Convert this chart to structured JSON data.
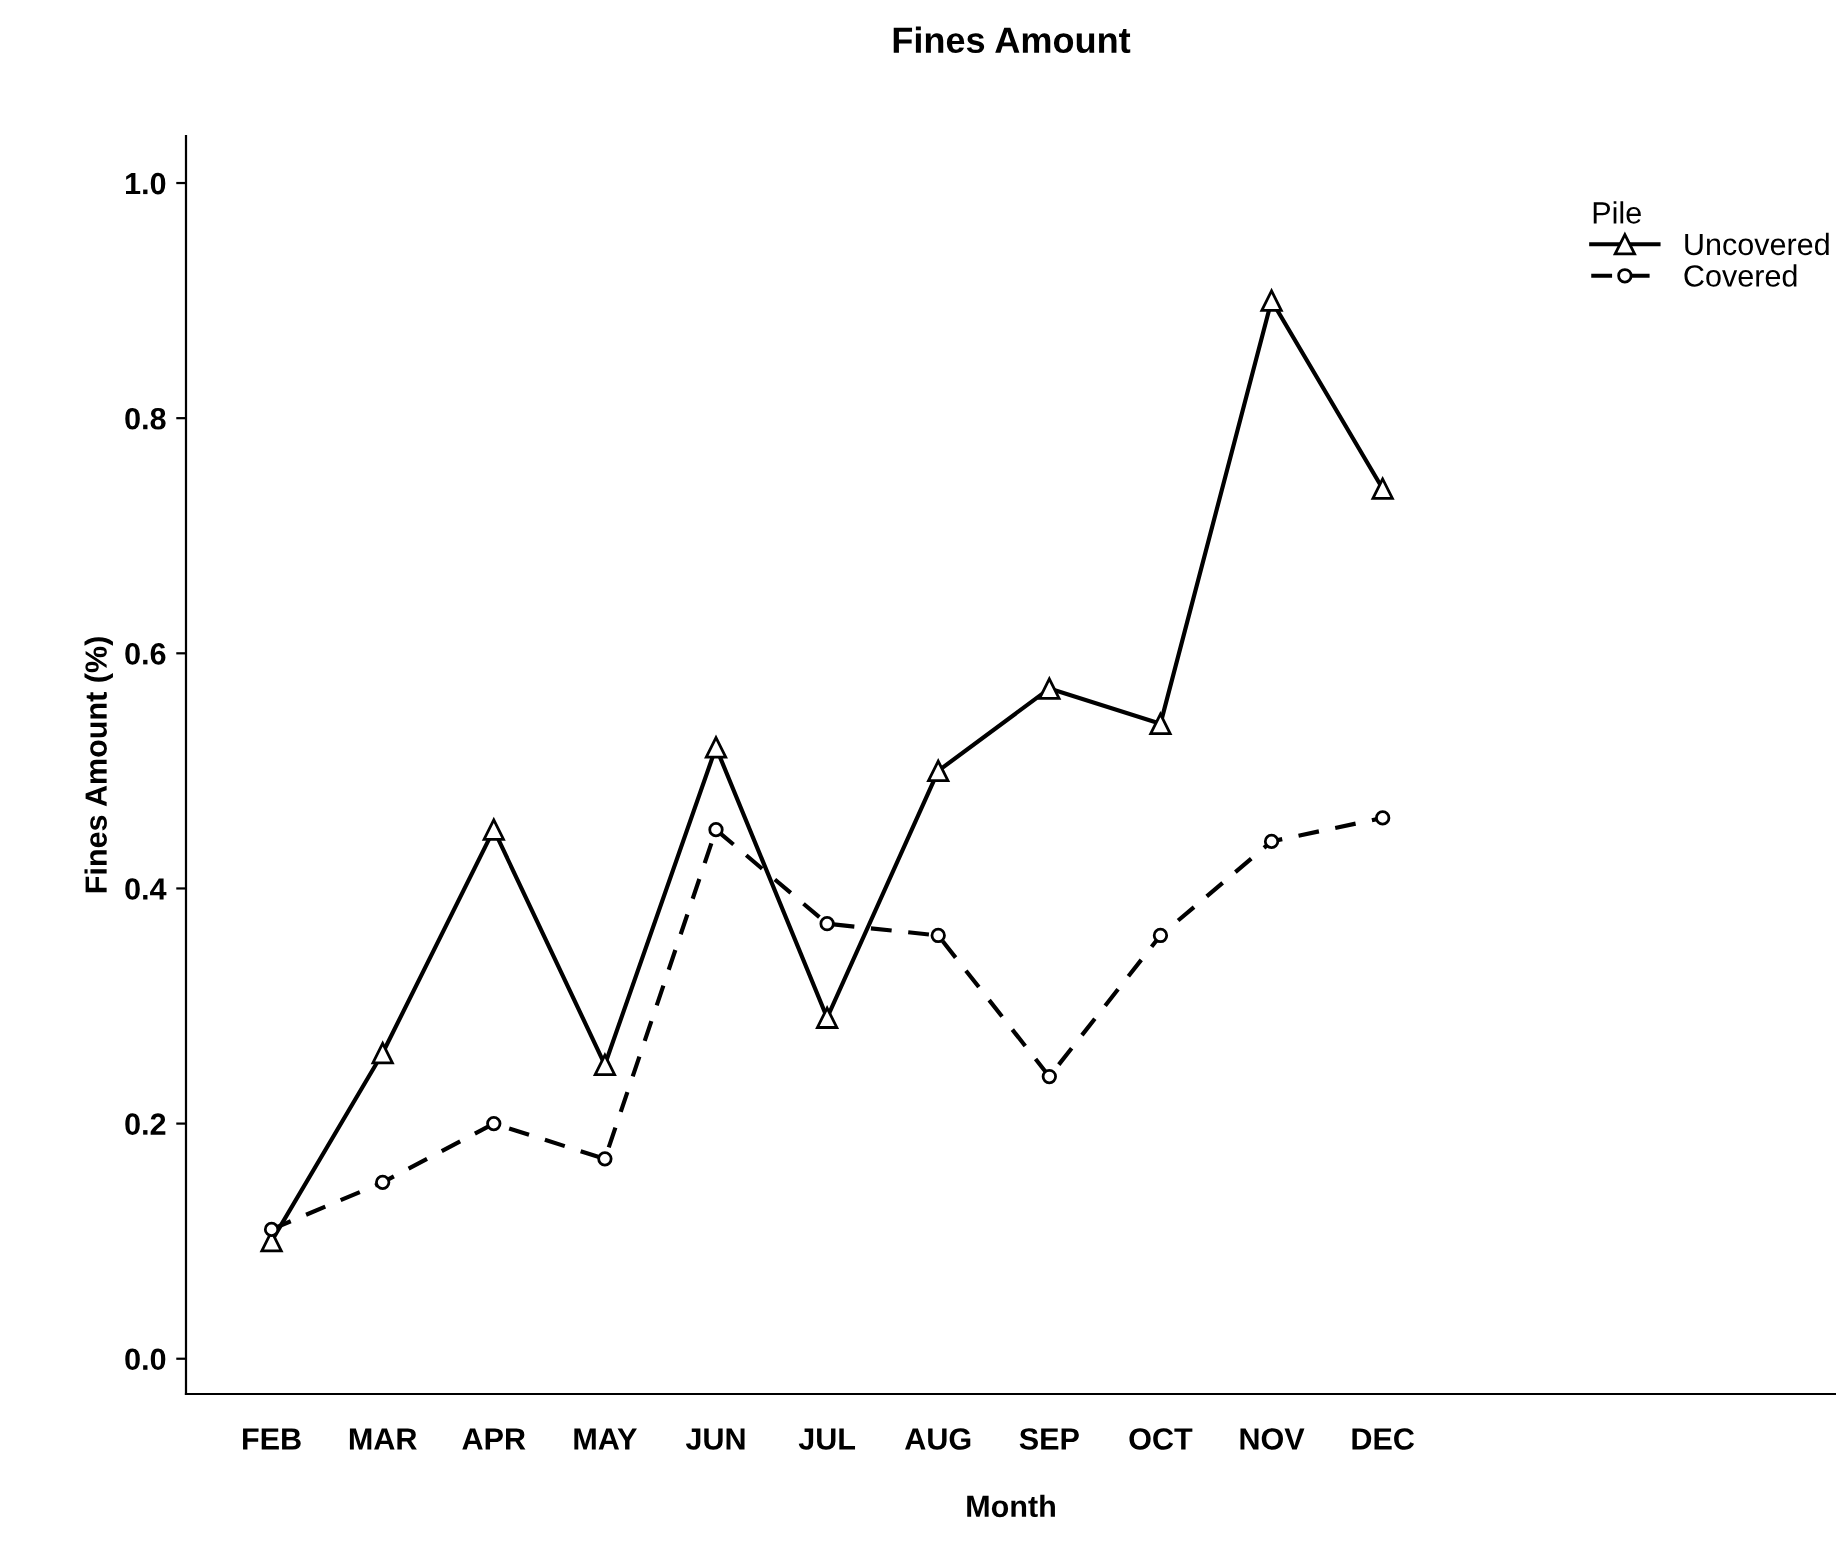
{
  "chart_data": {
    "type": "line",
    "title": "Fines Amount",
    "xlabel": "Month",
    "ylabel": "Fines Amount (%)",
    "legend_title": "Pile",
    "legend": "right",
    "categories": [
      "FEB",
      "MAR",
      "APR",
      "MAY",
      "JUN",
      "JUL",
      "AUG",
      "SEP",
      "OCT",
      "NOV",
      "DEC"
    ],
    "series": [
      {
        "name": "Uncovered",
        "color": "#000000",
        "marker": "triangle",
        "line_style": "solid",
        "values": [
          0.1,
          0.26,
          0.45,
          0.25,
          0.52,
          0.29,
          0.5,
          0.57,
          0.54,
          0.9,
          0.74
        ]
      },
      {
        "name": "Covered",
        "color": "#000000",
        "marker": "circle",
        "line_style": "dashed",
        "values": [
          0.11,
          0.15,
          0.2,
          0.17,
          0.45,
          0.37,
          0.36,
          0.24,
          0.36,
          0.44,
          0.46
        ]
      }
    ],
    "ylim": [
      -0.03,
      1.04
    ],
    "yticks": [
      {
        "value": 0,
        "label": "0.0"
      },
      {
        "value": 0.2,
        "label": "0.2"
      },
      {
        "value": 0.4,
        "label": "0.4"
      },
      {
        "value": 0.6,
        "label": "0.6"
      },
      {
        "value": 0.8,
        "label": "0.8"
      },
      {
        "value": 1,
        "label": "1.0"
      }
    ],
    "grid": false
  }
}
